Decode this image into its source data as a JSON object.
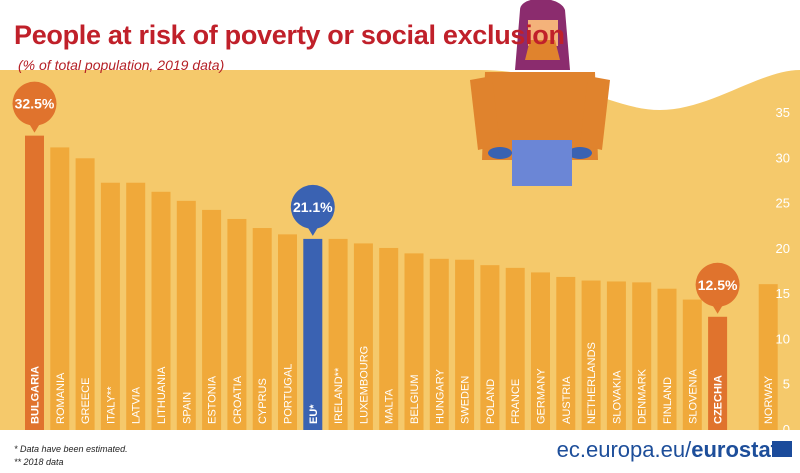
{
  "header": {
    "title": "People at risk of poverty or social exclusion",
    "subtitle": "(% of total population, 2019 data)"
  },
  "footer": {
    "note_estimated": "* Data have been estimated.",
    "note_2018": "** 2018 data",
    "source_domain": "ec.europa.eu/",
    "source_brand": "eurostat"
  },
  "colors": {
    "background_band": "#f5c96b",
    "background_light": "#fbe3a5",
    "bar_default": "#f0a93a",
    "bar_highlight_max": "#e0732d",
    "bar_highlight_min": "#e0732d",
    "bar_eu": "#3a62b2",
    "bubble_orange": "#e0732d",
    "bubble_blue": "#3a62b2",
    "label_bold": "#ffffff"
  },
  "chart_data": {
    "type": "bar",
    "categories": [
      "BULGARIA",
      "ROMANIA",
      "GREECE",
      "ITALY**",
      "LATVIA",
      "LITHUANIA",
      "SPAIN",
      "ESTONIA",
      "CROATIA",
      "CYPRUS",
      "PORTUGAL",
      "EU*",
      "IRELAND**",
      "LUXEMBOURG",
      "MALTA",
      "BELGIUM",
      "HUNGARY",
      "SWEDEN",
      "POLAND",
      "FRANCE",
      "GERMANY",
      "AUSTRIA",
      "NETHERLANDS",
      "SLOVAKIA",
      "DENMARK",
      "FINLAND",
      "SLOVENIA",
      "CZECHIA",
      "",
      "NORWAY"
    ],
    "values": [
      32.5,
      31.2,
      30.0,
      27.3,
      27.3,
      26.3,
      25.3,
      24.3,
      23.3,
      22.3,
      21.6,
      21.1,
      21.1,
      20.6,
      20.1,
      19.5,
      18.9,
      18.8,
      18.2,
      17.9,
      17.4,
      16.9,
      16.5,
      16.4,
      16.3,
      15.6,
      14.4,
      12.5,
      null,
      16.1
    ],
    "highlighted": {
      "BULGARIA": "32.5%",
      "EU*": "21.1%",
      "CZECHIA": "12.5%"
    },
    "y_ticks": [
      0,
      5,
      10,
      15,
      20,
      25,
      30,
      35
    ],
    "ylim": [
      0,
      35
    ],
    "grid": false
  }
}
